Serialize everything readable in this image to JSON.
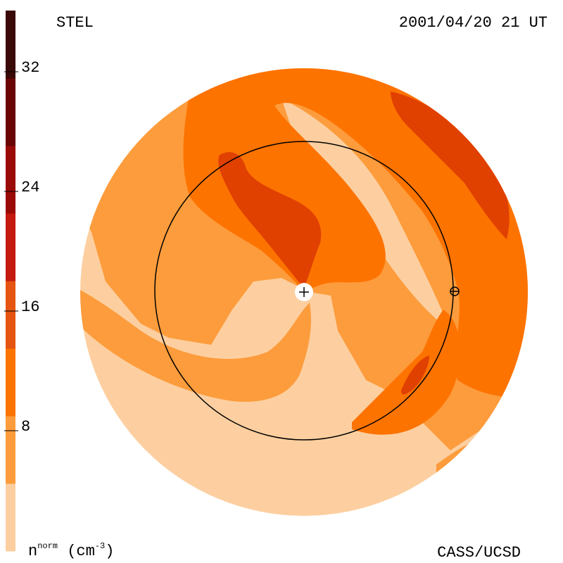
{
  "header": {
    "source": "STEL",
    "timestamp": "2001/04/20 21 UT"
  },
  "footer": {
    "unit_main": "n",
    "unit_sup": "norm",
    "unit_paren_open": "(cm",
    "unit_exp": "-3",
    "unit_paren_close": ")",
    "credit": "CASS/UCSD"
  },
  "colorbar": {
    "ticks": [
      "32",
      "24",
      "16",
      "8"
    ],
    "colors": [
      "#fdcfa0",
      "#fd9c3c",
      "#fd7300",
      "#e55410",
      "#c41a10",
      "#9a0a06",
      "#6a0505",
      "#3a0a08"
    ]
  },
  "map": {
    "band_colors": {
      "lightest": "#fdcfa0",
      "light": "#fd9c3c",
      "mid": "#fd7300",
      "dark": "#e04000"
    },
    "center_marker": "+",
    "planet_marker": "earth-symbol"
  }
}
